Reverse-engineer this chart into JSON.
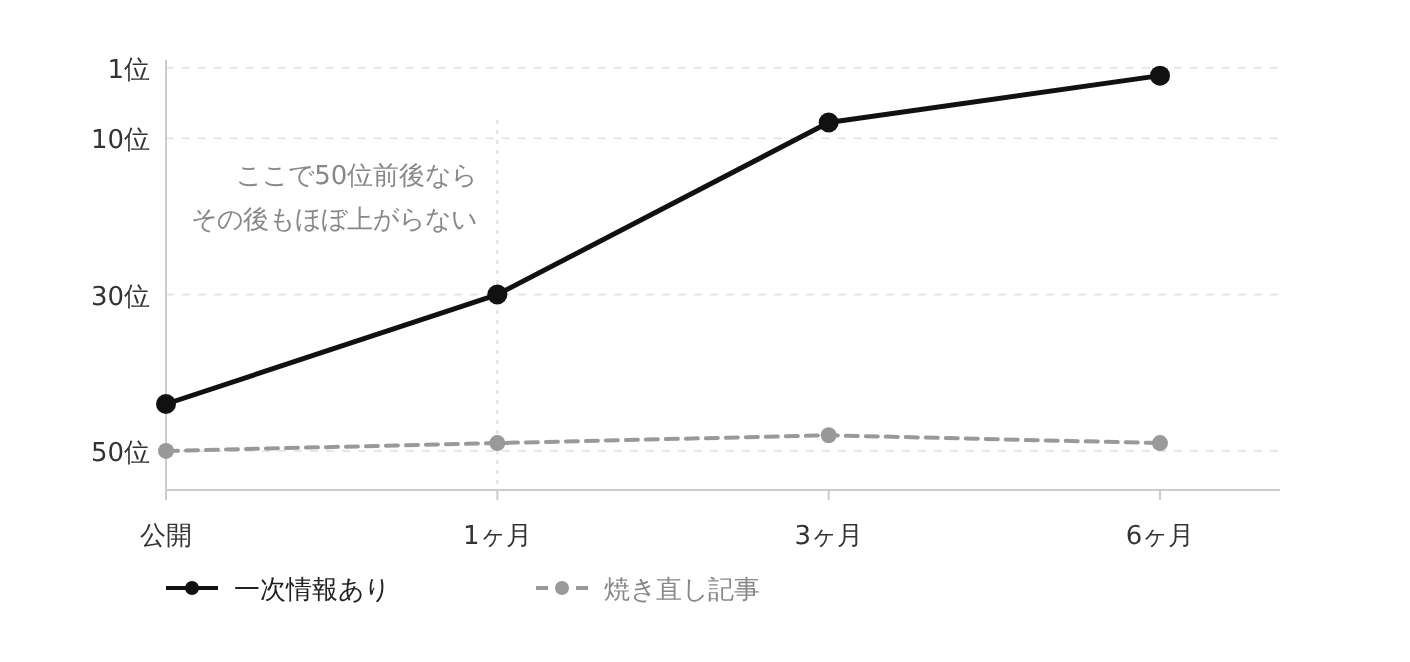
{
  "chart_data": {
    "type": "line",
    "categories": [
      "公開",
      "1ヶ月",
      "3ヶ月",
      "6ヶ月"
    ],
    "ylim": [
      55,
      0
    ],
    "yticks": [
      {
        "value": 1,
        "label": "1位"
      },
      {
        "value": 10,
        "label": "10位"
      },
      {
        "value": 30,
        "label": "30位"
      },
      {
        "value": 50,
        "label": "50位"
      }
    ],
    "series": [
      {
        "name": "一次情報あり",
        "color": "#111111",
        "values": [
          44,
          30,
          8,
          2
        ],
        "marker": "circle",
        "line_style": "solid"
      },
      {
        "name": "焼き直し記事",
        "color": "#999999",
        "values": [
          50,
          49,
          48,
          49
        ],
        "marker": "circle",
        "line_style": "dashed"
      }
    ],
    "ref_lines": [
      {
        "axis": "x",
        "value": "1ヶ月",
        "color": "#dddddd",
        "line_style": "dotted"
      }
    ],
    "annotations": [
      "ここで50位前後なら",
      "その後もほぼ上がらない"
    ],
    "grid": "y",
    "legend": "bottom left"
  }
}
